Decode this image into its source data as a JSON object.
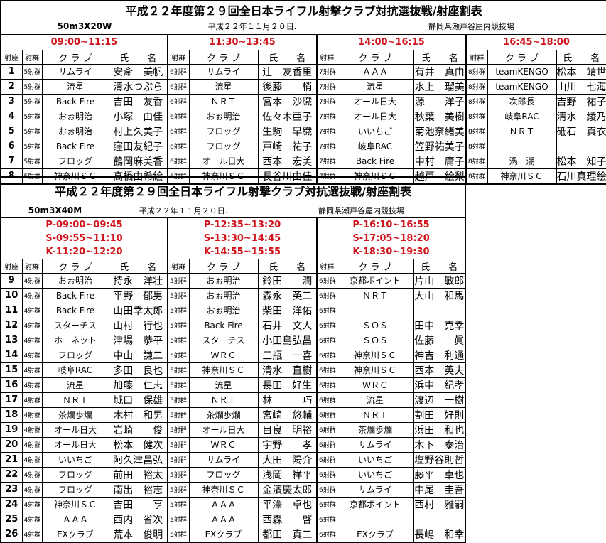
{
  "top": {
    "title": "平成２２年度第２９回全日本ライフル射撃クラブ対抗選抜戦/射座割表",
    "event": "50m3X20W",
    "date": "平成２２年１１月２０日.",
    "venue": "静岡県瀬戸谷屋内競技場",
    "headers": {
      "seat": "射座",
      "group": "射群",
      "club": "ク ラ ブ",
      "name": "氏　　名"
    },
    "sessions": [
      {
        "time": "09:00~11:15",
        "group": "5射群"
      },
      {
        "time": "11:30~13:45",
        "group": "6射群"
      },
      {
        "time": "14:00~16:15",
        "group": "7射群"
      },
      {
        "time": "16:45~18:00",
        "group": "8射群"
      }
    ],
    "rows": [
      {
        "seat": "1",
        "entries": [
          [
            "サムライ",
            "安斎　美帆"
          ],
          [
            "サムライ",
            "辻　友香里"
          ],
          [
            "ＡＡＡ",
            "有井　真由"
          ],
          [
            "teamKENGO",
            "松本　靖世"
          ]
        ]
      },
      {
        "seat": "2",
        "entries": [
          [
            "流星",
            "清水つぶら"
          ],
          [
            "流星",
            "後藤　　梢"
          ],
          [
            "流星",
            "水上　瑠美"
          ],
          [
            "teamKENGO",
            "山川　七海"
          ]
        ]
      },
      {
        "seat": "3",
        "entries": [
          [
            "Back Fire",
            "吉田　友香"
          ],
          [
            "ＮＲＴ",
            "宮本　沙織"
          ],
          [
            "オール日大",
            "源　　洋子"
          ],
          [
            "次郎長",
            "吉野　祐子"
          ]
        ]
      },
      {
        "seat": "4",
        "entries": [
          [
            "おぉ明治",
            "小塚　由佳"
          ],
          [
            "おぉ明治",
            "佐々木亜子"
          ],
          [
            "オール日大",
            "秋葉　美樹"
          ],
          [
            "岐阜RAC",
            "清水　綾乃"
          ]
        ]
      },
      {
        "seat": "5",
        "entries": [
          [
            "おぉ明治",
            "村上久美子"
          ],
          [
            "フロッグ",
            "生駒　早織"
          ],
          [
            "いいちご",
            "菊池奈緒美"
          ],
          [
            "ＮＲＴ",
            "砥石　真衣"
          ]
        ]
      },
      {
        "seat": "6",
        "entries": [
          [
            "Back Fire",
            "窪田友紀子"
          ],
          [
            "フロッグ",
            "戸崎　祐子"
          ],
          [
            "岐阜RAC",
            "笠野祐美子"
          ],
          [
            "",
            ""
          ]
        ]
      },
      {
        "seat": "7",
        "entries": [
          [
            "フロッグ",
            "鶴岡麻美香"
          ],
          [
            "オール日大",
            "西本　宏美"
          ],
          [
            "Back Fire",
            "中村　庸子"
          ],
          [
            "渦　潮",
            "松本　知子"
          ]
        ]
      },
      {
        "seat": "8",
        "entries": [
          [
            "神奈川ＳＣ",
            "高橋由希絵"
          ],
          [
            "神奈川ＳＣ",
            "長谷川由佳"
          ],
          [
            "神奈川ＳＣ",
            "越戸　絵梨"
          ],
          [
            "神奈川ＳＣ",
            "石川真理絵"
          ]
        ]
      }
    ]
  },
  "bottom": {
    "title": "平成２２年度第２９回全日本ライフル射撃クラブ対抗選抜戦/射座割表",
    "event": "50m3X40M",
    "date": "平成２２年１１月２０日.",
    "venue": "静岡県瀬戸谷屋内競技場",
    "headers": {
      "seat": "射座",
      "group": "射群",
      "club": "ク ラ ブ",
      "name": "氏　　名"
    },
    "sessions": [
      {
        "times": [
          "P-09:00~09:45",
          "S-09:55~11:10",
          "K-11:20~12:20"
        ],
        "group": "4射群"
      },
      {
        "times": [
          "P-12:35~13:20",
          "S-13:30~14:45",
          "K-14:55~15:55"
        ],
        "group": "5射群"
      },
      {
        "times": [
          "P-16:10~16:55",
          "S-17:05~18:20",
          "K-18:30~19:30"
        ],
        "group": "6射群"
      }
    ],
    "rows": [
      {
        "seat": "9",
        "entries": [
          [
            "おぉ明治",
            "持永　洋壮"
          ],
          [
            "おぉ明治",
            "鈴田　　潤"
          ],
          [
            "京都ポイント",
            "片山　敏郎"
          ]
        ]
      },
      {
        "seat": "10",
        "entries": [
          [
            "Back Fire",
            "平野　郁男"
          ],
          [
            "おぉ明治",
            "森永　英二"
          ],
          [
            "ＮＲＴ",
            "大山　和馬"
          ]
        ]
      },
      {
        "seat": "11",
        "entries": [
          [
            "Back Fire",
            "山田幸太郎"
          ],
          [
            "おぉ明治",
            "柴田　洋佑"
          ],
          [
            "",
            ""
          ]
        ]
      },
      {
        "seat": "12",
        "entries": [
          [
            "スターチス",
            "山村　行也"
          ],
          [
            "Back Fire",
            "石井　文人"
          ],
          [
            "ＳＯＳ",
            "田中　克幸"
          ]
        ]
      },
      {
        "seat": "13",
        "entries": [
          [
            "ホーネット",
            "津場　恭平"
          ],
          [
            "スターチス",
            "小田島弘昌"
          ],
          [
            "ＳＯＳ",
            "佐藤　　眞"
          ]
        ]
      },
      {
        "seat": "14",
        "entries": [
          [
            "フロッグ",
            "中山　謙二"
          ],
          [
            "ＷＲＣ",
            "三瓶　一喜"
          ],
          [
            "神奈川ＳＣ",
            "神吉　利通"
          ]
        ]
      },
      {
        "seat": "15",
        "entries": [
          [
            "岐阜RAC",
            "多田　良也"
          ],
          [
            "神奈川ＳＣ",
            "清水　直樹"
          ],
          [
            "神奈川ＳＣ",
            "西本　英夫"
          ]
        ]
      },
      {
        "seat": "16",
        "entries": [
          [
            "流星",
            "加藤　仁志"
          ],
          [
            "流星",
            "長田　好生"
          ],
          [
            "ＷＲＣ",
            "浜中　紀孝"
          ]
        ]
      },
      {
        "seat": "17",
        "entries": [
          [
            "ＮＲＴ",
            "城口　保雄"
          ],
          [
            "ＮＲＴ",
            "林　　　巧"
          ],
          [
            "流星",
            "渡辺　一樹"
          ]
        ]
      },
      {
        "seat": "18",
        "entries": [
          [
            "茶爛歩爛",
            "木村　和男"
          ],
          [
            "茶爛歩爛",
            "宮崎　悠輔"
          ],
          [
            "ＮＲＴ",
            "割田　好則"
          ]
        ]
      },
      {
        "seat": "19",
        "entries": [
          [
            "オール日大",
            "岩崎　　俊"
          ],
          [
            "オール日大",
            "目良　明裕"
          ],
          [
            "茶爛歩爛",
            "浜田　和也"
          ]
        ]
      },
      {
        "seat": "20",
        "entries": [
          [
            "オール日大",
            "松本　健次"
          ],
          [
            "ＷＲＣ",
            "宇野　　孝"
          ],
          [
            "サムライ",
            "木下　泰治"
          ]
        ]
      },
      {
        "seat": "21",
        "entries": [
          [
            "いいちご",
            "阿久津昌弘"
          ],
          [
            "サムライ",
            "大田　陽介"
          ],
          [
            "いいちご",
            "塩野谷則哲"
          ]
        ]
      },
      {
        "seat": "22",
        "entries": [
          [
            "フロッグ",
            "前田　裕太"
          ],
          [
            "フロッグ",
            "浅岡　祥平"
          ],
          [
            "いいちご",
            "藤平　卓也"
          ]
        ]
      },
      {
        "seat": "23",
        "entries": [
          [
            "フロッグ",
            "南出　裕志"
          ],
          [
            "神奈川ＳＣ",
            "金濱慶太郎"
          ],
          [
            "サムライ",
            "中尾　圭吾"
          ]
        ]
      },
      {
        "seat": "24",
        "entries": [
          [
            "神奈川ＳＣ",
            "吉田　　亨"
          ],
          [
            "ＡＡＡ",
            "平澤　卓也"
          ],
          [
            "京都ポイント",
            "西村　雅嗣"
          ]
        ]
      },
      {
        "seat": "25",
        "entries": [
          [
            "ＡＡＡ",
            "西内　省次"
          ],
          [
            "ＡＡＡ",
            "西森　　啓"
          ],
          [
            "",
            ""
          ]
        ]
      },
      {
        "seat": "26",
        "entries": [
          [
            "EXクラブ",
            "荒本　俊明"
          ],
          [
            "EXクラブ",
            "都田　真二"
          ],
          [
            "EXクラブ",
            "長嶋　和幸"
          ]
        ]
      }
    ]
  },
  "colors": {
    "time_text": "#d0141c",
    "border": "#000000"
  }
}
